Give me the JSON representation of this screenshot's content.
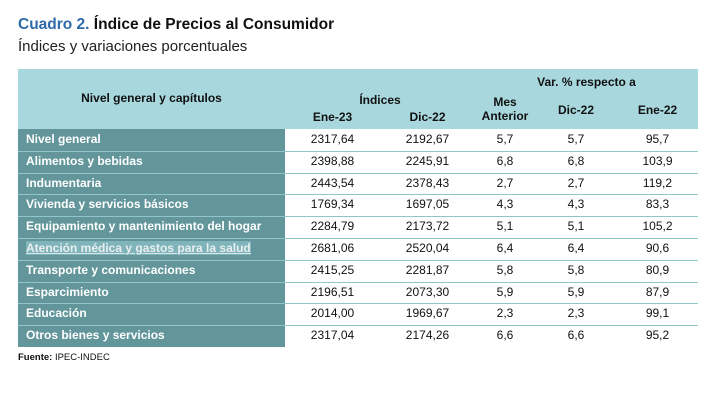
{
  "header": {
    "title_number": "Cuadro 2.",
    "title_text": "Índice de Precios al Consumidor",
    "subtitle": "Índices y variaciones porcentuales"
  },
  "columns": {
    "label_header": "Nivel general y capítulos",
    "indices_group": "Índices",
    "var_group": "Var. % respecto a",
    "ene23": "Ene-23",
    "dic22": "Dic-22",
    "mes_anterior": "Mes Anterior",
    "var_dic22": "Dic-22",
    "var_ene22": "Ene-22"
  },
  "rows": [
    {
      "label": "Nivel general",
      "ene23": "2317,64",
      "dic22": "2192,67",
      "mes": "5,7",
      "vdic": "5,7",
      "vene": "95,7"
    },
    {
      "label": "Alimentos y bebidas",
      "ene23": "2398,88",
      "dic22": "2245,91",
      "mes": "6,8",
      "vdic": "6,8",
      "vene": "103,9"
    },
    {
      "label": "Indumentaria",
      "ene23": "2443,54",
      "dic22": "2378,43",
      "mes": "2,7",
      "vdic": "2,7",
      "vene": "119,2"
    },
    {
      "label": "Vivienda y servicios básicos",
      "ene23": "1769,34",
      "dic22": "1697,05",
      "mes": "4,3",
      "vdic": "4,3",
      "vene": "83,3"
    },
    {
      "label": "Equipamiento y mantenimiento del hogar",
      "ene23": "2284,79",
      "dic22": "2173,72",
      "mes": "5,1",
      "vdic": "5,1",
      "vene": "105,2"
    },
    {
      "label": "Atención médica y gastos para la salud",
      "ene23": "2681,06",
      "dic22": "2520,04",
      "mes": "6,4",
      "vdic": "6,4",
      "vene": "90,6"
    },
    {
      "label": "Transporte y comunicaciones",
      "ene23": "2415,25",
      "dic22": "2281,87",
      "mes": "5,8",
      "vdic": "5,8",
      "vene": "80,9"
    },
    {
      "label": "Esparcimiento",
      "ene23": "2196,51",
      "dic22": "2073,30",
      "mes": "5,9",
      "vdic": "5,9",
      "vene": "87,9"
    },
    {
      "label": "Educación",
      "ene23": "2014,00",
      "dic22": "1969,67",
      "mes": "2,3",
      "vdic": "2,3",
      "vene": "99,1"
    },
    {
      "label": "Otros bienes y servicios",
      "ene23": "2317,04",
      "dic22": "2174,26",
      "mes": "6,6",
      "vdic": "6,6",
      "vene": "95,2"
    }
  ],
  "selected_row_index": 5,
  "source": {
    "label": "Fuente:",
    "value": "IPEC-INDEC"
  },
  "colors": {
    "header_bg": "#a8d8dd",
    "label_bg": "#62969b",
    "title_accent": "#2e6aa8"
  }
}
